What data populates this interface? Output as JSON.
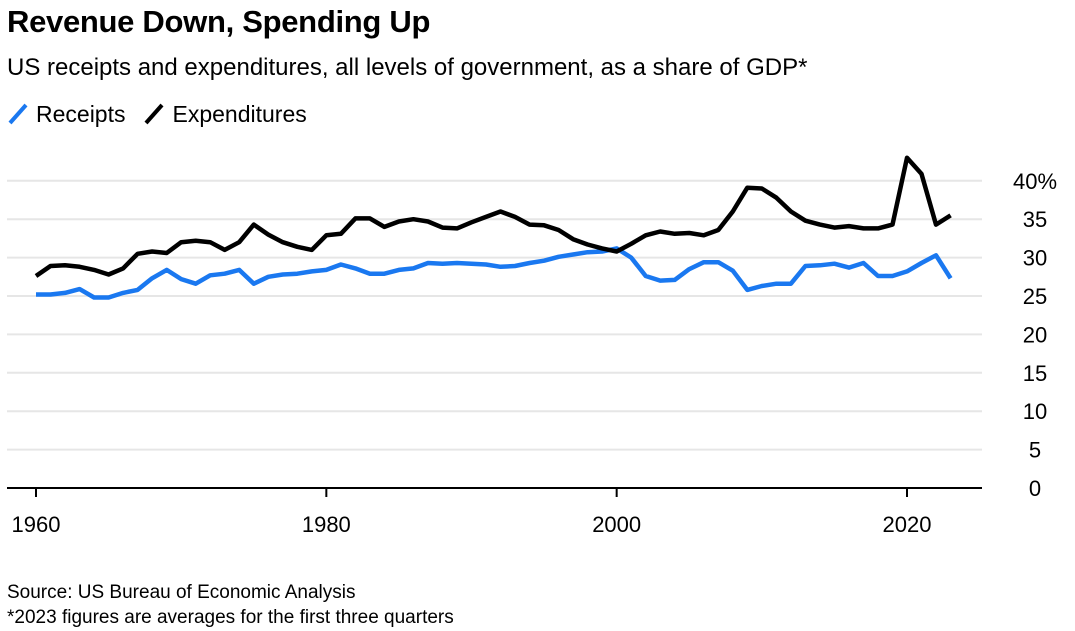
{
  "title": "Revenue Down, Spending Up",
  "subtitle": "US receipts and expenditures, all levels of government, as a share of GDP*",
  "source": "Source: US Bureau of Economic Analysis",
  "footnote": "*2023 figures are averages for the first three quarters",
  "colors": {
    "receipts": "#1a78f0",
    "expenditures": "#000000",
    "grid": "#e6e6e6",
    "axis": "#000000"
  },
  "chart_data": {
    "type": "line",
    "title": "Revenue Down, Spending Up",
    "subtitle": "US receipts and expenditures, all levels of government, as a share of GDP*",
    "xlabel": "",
    "ylabel": "",
    "xlim": [
      1960,
      2025
    ],
    "ylim": [
      0,
      45
    ],
    "x_ticks": [
      {
        "value": 1960,
        "label": "1960"
      },
      {
        "value": 1980,
        "label": "1980"
      },
      {
        "value": 2000,
        "label": "2000"
      },
      {
        "value": 2020,
        "label": "2020"
      }
    ],
    "y_ticks": [
      {
        "value": 40,
        "label": "40%"
      },
      {
        "value": 35,
        "label": "35"
      },
      {
        "value": 30,
        "label": "30"
      },
      {
        "value": 25,
        "label": "25"
      },
      {
        "value": 20,
        "label": "20"
      },
      {
        "value": 15,
        "label": "15"
      },
      {
        "value": 10,
        "label": "10"
      },
      {
        "value": 5,
        "label": "5"
      },
      {
        "value": 0,
        "label": "0"
      }
    ],
    "grid": true,
    "legend_position": "top-left",
    "x": [
      1960,
      1961,
      1962,
      1963,
      1964,
      1965,
      1966,
      1967,
      1968,
      1969,
      1970,
      1971,
      1972,
      1973,
      1974,
      1975,
      1976,
      1977,
      1978,
      1979,
      1980,
      1981,
      1982,
      1983,
      1984,
      1985,
      1986,
      1987,
      1988,
      1989,
      1990,
      1991,
      1992,
      1993,
      1994,
      1995,
      1996,
      1997,
      1998,
      1999,
      2000,
      2001,
      2002,
      2003,
      2004,
      2005,
      2006,
      2007,
      2008,
      2009,
      2010,
      2011,
      2012,
      2013,
      2014,
      2015,
      2016,
      2017,
      2018,
      2019,
      2020,
      2021,
      2022,
      2023
    ],
    "series": [
      {
        "name": "Receipts",
        "color": "#1a78f0",
        "values": [
          25.2,
          25.2,
          25.4,
          25.9,
          24.8,
          24.8,
          25.4,
          25.8,
          27.3,
          28.4,
          27.2,
          26.6,
          27.7,
          27.9,
          28.4,
          26.6,
          27.5,
          27.8,
          27.9,
          28.2,
          28.4,
          29.1,
          28.6,
          27.9,
          27.9,
          28.4,
          28.6,
          29.3,
          29.2,
          29.3,
          29.2,
          29.1,
          28.8,
          28.9,
          29.3,
          29.6,
          30.1,
          30.4,
          30.7,
          30.8,
          31.2,
          30.0,
          27.6,
          27.0,
          27.1,
          28.5,
          29.4,
          29.4,
          28.3,
          25.8,
          26.3,
          26.6,
          26.6,
          28.9,
          29.0,
          29.2,
          28.7,
          29.3,
          27.6,
          27.6,
          28.2,
          29.3,
          30.3,
          27.3
        ]
      },
      {
        "name": "Expenditures",
        "color": "#000000",
        "values": [
          27.6,
          28.9,
          29.0,
          28.8,
          28.4,
          27.8,
          28.6,
          30.5,
          30.8,
          30.6,
          32.0,
          32.2,
          32.0,
          31.0,
          32.0,
          34.3,
          33.0,
          32.0,
          31.4,
          31.0,
          32.9,
          33.1,
          35.1,
          35.1,
          34.0,
          34.7,
          35.0,
          34.7,
          33.9,
          33.8,
          34.6,
          35.3,
          36.0,
          35.3,
          34.3,
          34.2,
          33.6,
          32.4,
          31.7,
          31.2,
          30.8,
          31.8,
          32.9,
          33.4,
          33.1,
          33.2,
          32.9,
          33.6,
          36.0,
          39.1,
          39.0,
          37.8,
          36.0,
          34.8,
          34.3,
          33.9,
          34.1,
          33.8,
          33.8,
          34.3,
          43.0,
          40.9,
          34.3,
          35.5
        ]
      }
    ]
  }
}
